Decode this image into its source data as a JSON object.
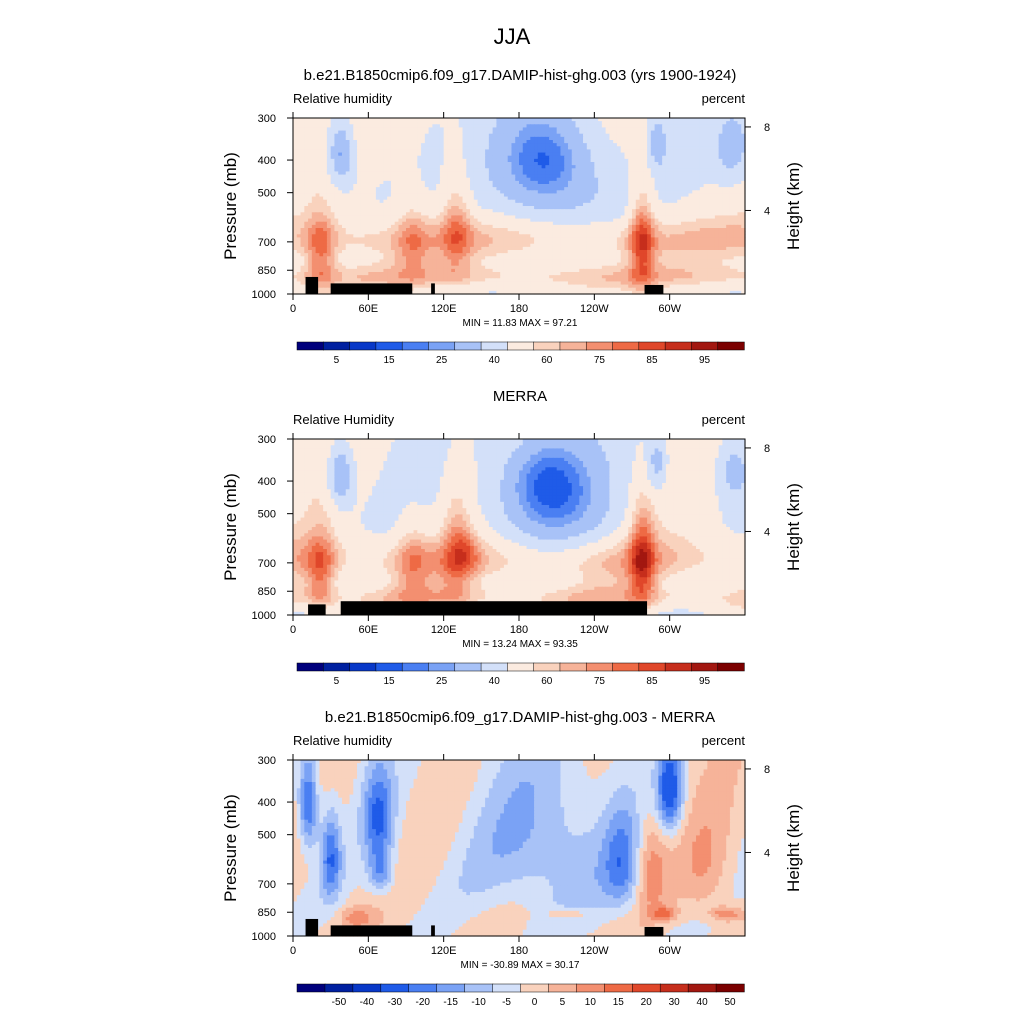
{
  "figure_title": "JJA",
  "chart_data": [
    {
      "type": "heatmap",
      "title": "b.e21.B1850cmip6.f09_g17.DAMIP-hist-ghg.003 (yrs 1900-1924)",
      "left_label": "Relative humidity",
      "right_label": "percent",
      "ylabel": "Pressure (mb)",
      "ylabel_right": "Height (km)",
      "x_ticks": [
        "0",
        "60E",
        "120E",
        "180",
        "120W",
        "60W"
      ],
      "x_tick_lon": [
        0,
        60,
        120,
        180,
        240,
        300
      ],
      "xlim": [
        0,
        360
      ],
      "y_ticks": [
        "300",
        "400",
        "500",
        "700",
        "850",
        "1000"
      ],
      "y_tick_values": [
        300,
        400,
        500,
        700,
        850,
        1000
      ],
      "ylim": [
        1000,
        300
      ],
      "y_scale": "log",
      "height_ticks": [
        "8",
        "4"
      ],
      "height_tick_values": [
        8,
        4
      ],
      "stats": "MIN = 11.83  MAX = 97.21",
      "min": 11.83,
      "max": 97.21,
      "colorbar_labels": [
        "5",
        "15",
        "25",
        "40",
        "60",
        "75",
        "85",
        "95"
      ],
      "colorbar_label_bin_index": [
        1,
        3,
        5,
        7,
        9,
        11,
        13,
        15
      ],
      "colorbar_levels": [
        5,
        10,
        15,
        20,
        25,
        30,
        40,
        50,
        60,
        65,
        70,
        75,
        80,
        85,
        90,
        95
      ],
      "field_kind": "abs",
      "seed": 1,
      "topography": [
        [
          10,
          940
        ],
        [
          20,
          890
        ],
        [
          30,
          940
        ],
        [
          95,
          930
        ],
        [
          110,
          930
        ],
        [
          113,
          930
        ],
        [
          280,
          940
        ],
        [
          295,
          940
        ]
      ]
    },
    {
      "type": "heatmap",
      "title": "MERRA",
      "left_label": "Relative Humidity",
      "right_label": "percent",
      "ylabel": "Pressure (mb)",
      "ylabel_right": "Height (km)",
      "x_ticks": [
        "0",
        "60E",
        "120E",
        "180",
        "120W",
        "60W"
      ],
      "x_tick_lon": [
        0,
        60,
        120,
        180,
        240,
        300
      ],
      "xlim": [
        0,
        360
      ],
      "y_ticks": [
        "300",
        "400",
        "500",
        "700",
        "850",
        "1000"
      ],
      "y_tick_values": [
        300,
        400,
        500,
        700,
        850,
        1000
      ],
      "ylim": [
        1000,
        300
      ],
      "y_scale": "log",
      "height_ticks": [
        "8",
        "4"
      ],
      "height_tick_values": [
        8,
        4
      ],
      "stats": "MIN = 13.24  MAX = 93.35",
      "min": 13.24,
      "max": 93.35,
      "colorbar_labels": [
        "5",
        "15",
        "25",
        "40",
        "60",
        "75",
        "85",
        "95"
      ],
      "colorbar_label_bin_index": [
        1,
        3,
        5,
        7,
        9,
        11,
        13,
        15
      ],
      "colorbar_levels": [
        5,
        10,
        15,
        20,
        25,
        30,
        40,
        50,
        60,
        65,
        70,
        75,
        80,
        85,
        90,
        95
      ],
      "field_kind": "abs",
      "seed": 2,
      "topography": [
        [
          12,
          960
        ],
        [
          26,
          930
        ],
        [
          38,
          910
        ],
        [
          282,
          960
        ]
      ]
    },
    {
      "type": "heatmap",
      "title": "b.e21.B1850cmip6.f09_g17.DAMIP-hist-ghg.003 - MERRA",
      "left_label": "Relative humidity",
      "right_label": "percent",
      "ylabel": "Pressure (mb)",
      "ylabel_right": "Height (km)",
      "x_ticks": [
        "0",
        "60E",
        "120E",
        "180",
        "120W",
        "60W"
      ],
      "x_tick_lon": [
        0,
        60,
        120,
        180,
        240,
        300
      ],
      "xlim": [
        0,
        360
      ],
      "y_ticks": [
        "300",
        "400",
        "500",
        "700",
        "850",
        "1000"
      ],
      "y_tick_values": [
        300,
        400,
        500,
        700,
        850,
        1000
      ],
      "ylim": [
        1000,
        300
      ],
      "y_scale": "log",
      "height_ticks": [
        "8",
        "4"
      ],
      "height_tick_values": [
        8,
        4
      ],
      "stats": "MIN = -30.89  MAX = 30.17",
      "min": -30.89,
      "max": 30.17,
      "colorbar_labels": [
        "-50",
        "-40",
        "-30",
        "-20",
        "-15",
        "-10",
        "-5",
        "0",
        "5",
        "10",
        "15",
        "20",
        "30",
        "40",
        "50"
      ],
      "colorbar_label_bin_index": [
        1,
        2,
        3,
        4,
        5,
        6,
        7,
        8,
        9,
        10,
        11,
        12,
        13,
        14,
        15
      ],
      "colorbar_levels": [
        -50,
        -40,
        -30,
        -20,
        -15,
        -10,
        -5,
        0,
        5,
        10,
        15,
        20,
        30,
        40,
        50
      ],
      "field_kind": "diff",
      "seed": 3,
      "topography": [
        [
          10,
          940
        ],
        [
          20,
          890
        ],
        [
          30,
          940
        ],
        [
          95,
          930
        ],
        [
          110,
          930
        ],
        [
          113,
          930
        ],
        [
          280,
          940
        ],
        [
          295,
          940
        ]
      ]
    }
  ],
  "colors": {
    "palette": [
      "#00007c",
      "#0020a0",
      "#0838c8",
      "#1f5be8",
      "#4a7ff2",
      "#7aa2f5",
      "#a8c2f7",
      "#d3e0f9",
      "#fbebe0",
      "#f9d2bd",
      "#f6b399",
      "#f38f70",
      "#ee6a45",
      "#e0472a",
      "#c62e1c",
      "#a21710",
      "#7b0000"
    ],
    "topography": "#000000",
    "frame": "#000000"
  }
}
